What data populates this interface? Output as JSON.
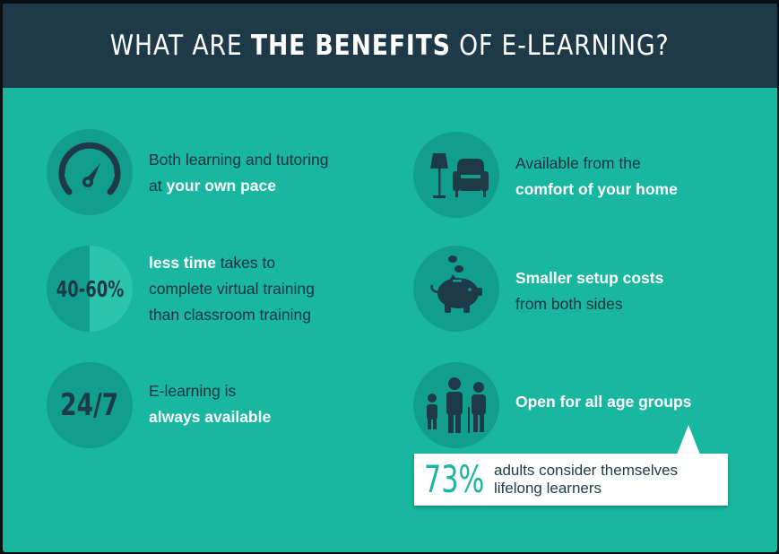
{
  "header": {
    "title_part1": "WHAT ARE ",
    "title_bold": "THE BENEFITS",
    "title_part2": " OF E-LEARNING?"
  },
  "benefits": {
    "pace": {
      "icon": "speedometer-icon",
      "line1": "Both learning and tutoring",
      "line2_prefix": "at ",
      "line2_highlight": "your own pace"
    },
    "time": {
      "stat": "40-60%",
      "stat_fill_fraction": 0.5,
      "line1_highlight": "less time",
      "line1_rest": " takes to",
      "line2": "complete virtual training",
      "line3": "than classroom training"
    },
    "availability": {
      "stat": "24/7",
      "line1": "E-learning is",
      "line2_highlight": "always available"
    },
    "comfort": {
      "icon": "lamp-armchair-icon",
      "line1": "Available from the",
      "line2_highlight": "comfort of your home"
    },
    "costs": {
      "icon": "piggy-bank-icon",
      "line1_highlight": "Smaller setup costs",
      "line2": "from both sides"
    },
    "age": {
      "icon": "family-icon",
      "line1_highlight": "Open for all age groups"
    }
  },
  "callout": {
    "percent": "73%",
    "line1": "adults consider themselves",
    "line2": "lifelong learners"
  },
  "colors": {
    "background": "#19b6a0",
    "header": "#1e3a49",
    "circle": "#129e8c",
    "dark_text": "#153341",
    "highlight_text": "#ffffff"
  }
}
